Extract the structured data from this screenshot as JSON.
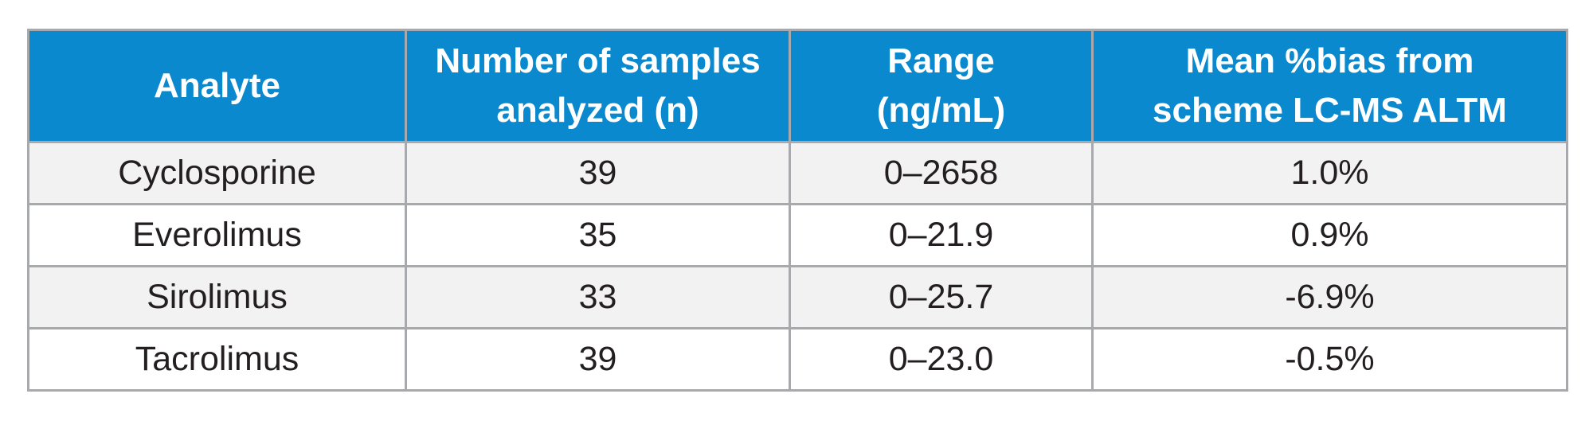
{
  "table": {
    "headers": [
      [
        "Analyte"
      ],
      [
        "Number of samples",
        "analyzed (n)"
      ],
      [
        "Range",
        "(ng/mL)"
      ],
      [
        "Mean %bias from",
        "scheme LC-MS ALTM"
      ]
    ],
    "rows": [
      [
        "Cyclosporine",
        "39",
        "0–2658",
        "1.0%"
      ],
      [
        "Everolimus",
        "35",
        "0–21.9",
        "0.9%"
      ],
      [
        "Sirolimus",
        "33",
        "0–25.7",
        "-6.9%"
      ],
      [
        "Tacrolimus",
        "39",
        "0–23.0",
        "-0.5%"
      ]
    ]
  },
  "colors": {
    "header_bg": "#0a89cf",
    "header_text": "#ffffff",
    "row_alt_bg": "#f2f2f3",
    "border": "#a7a9ac"
  }
}
